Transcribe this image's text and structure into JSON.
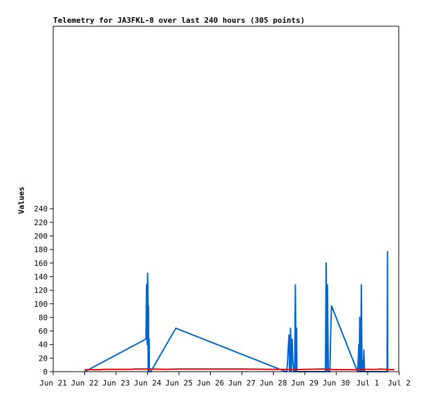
{
  "chart_data": {
    "type": "line",
    "title": "Telemetry for JA3FKL-8 over last 240 hours (305 points)",
    "xlabel": "",
    "ylabel": "Values",
    "x_tick_labels": [
      "Jun 21",
      "Jun 22",
      "Jun 23",
      "Jun 24",
      "Jun 25",
      "Jun 26",
      "Jun 27",
      "Jun 28",
      "Jun 29",
      "Jun 30",
      "Jul 1",
      "Jul 2"
    ],
    "y_tick_labels": [
      "0",
      "20",
      "40",
      "60",
      "80",
      "100",
      "120",
      "140",
      "160",
      "180",
      "200",
      "220",
      "240"
    ],
    "xlim": [
      0,
      11
    ],
    "ylim": [
      0,
      256
    ],
    "grid": false,
    "legend": "none",
    "series": [
      {
        "color": "#0066cc",
        "x": [
          1.0,
          2.95,
          2.97,
          2.99,
          3.0,
          3.01,
          3.02,
          3.03,
          3.04,
          3.05,
          3.06,
          3.07,
          3.1,
          3.9,
          7.4,
          7.42,
          7.45,
          7.47,
          7.5,
          7.52,
          7.55,
          7.57,
          7.6,
          7.62,
          7.65,
          7.67,
          7.68,
          7.7,
          7.72,
          7.74,
          7.75,
          7.77,
          8.66,
          8.68,
          8.7,
          8.72,
          8.75,
          8.8,
          8.82,
          8.85,
          9.68,
          9.7,
          9.72,
          9.73,
          9.75,
          9.77,
          9.78,
          9.8,
          9.82,
          9.84,
          9.86,
          9.88,
          9.9,
          10.62,
          10.63,
          10.64,
          10.65
        ],
        "y": [
          0,
          48,
          128,
          40,
          145,
          128,
          0,
          97,
          0,
          48,
          0,
          0,
          0,
          64,
          0,
          0,
          10,
          32,
          54,
          0,
          64,
          0,
          48,
          16,
          0,
          0,
          0,
          128,
          0,
          64,
          0,
          0,
          0,
          160,
          0,
          128,
          0,
          0,
          48,
          97,
          0,
          16,
          40,
          0,
          80,
          0,
          0,
          128,
          0,
          16,
          0,
          32,
          0,
          0,
          177,
          0,
          0
        ]
      },
      {
        "color": "#ff0000",
        "x": [
          1.0,
          1.5,
          1.6,
          2.5,
          2.6,
          3.1,
          3.6,
          4.0,
          5.0,
          6.0,
          7.0,
          7.3,
          7.7,
          8.0,
          8.5,
          8.6,
          8.8,
          9.0,
          9.6,
          9.8,
          9.9,
          10.3,
          10.4,
          10.6,
          10.85
        ],
        "y": [
          3,
          3,
          3.5,
          3.5,
          4,
          4,
          3.5,
          4,
          4,
          4,
          3.5,
          3.5,
          3,
          3.5,
          4,
          4,
          3.5,
          3,
          3,
          3,
          3.5,
          3.5,
          4,
          3.5,
          3
        ]
      }
    ]
  }
}
